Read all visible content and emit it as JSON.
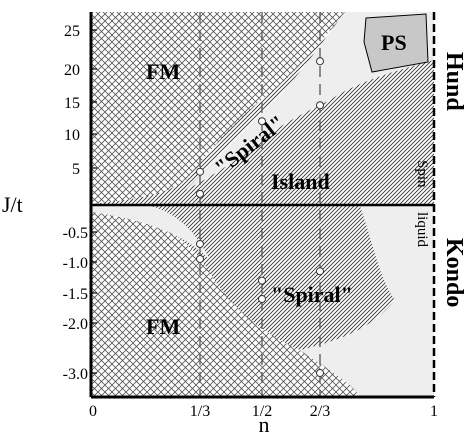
{
  "chart_data": {
    "type": "phase-diagram",
    "xlabel": "n",
    "ylabel": "J/t",
    "x_ticks": [
      "0",
      "1/3",
      "1/2",
      "2/3",
      "1"
    ],
    "y_ticks_upper": [
      "25",
      "20",
      "15",
      "10",
      "5"
    ],
    "y_ticks_lower": [
      "-0.5",
      "-1.0",
      "-1.5",
      "-2.0",
      "-3.0"
    ],
    "side_labels": {
      "top": "Hund",
      "bottom": "Kondo"
    },
    "region_labels": {
      "fm_upper": "FM",
      "fm_lower": "FM",
      "spiral_upper": "\"Spiral\"",
      "spiral_lower": "\"Spiral\"",
      "island": "Island",
      "ps": "PS",
      "spin_liquid_1": "Spin",
      "spin_liquid_2": "liquid"
    },
    "data_points": [
      {
        "n": "1/3",
        "J": 4.5
      },
      {
        "n": "1/3",
        "J": 1.5
      },
      {
        "n": "1/2",
        "J": 12.0
      },
      {
        "n": "2/3",
        "J": 21.0
      },
      {
        "n": "2/3",
        "J": 14.5
      },
      {
        "n": "1/3",
        "J": -0.7
      },
      {
        "n": "1/3",
        "J": -0.95
      },
      {
        "n": "1/2",
        "J": -1.3
      },
      {
        "n": "1/2",
        "J": -1.6
      },
      {
        "n": "2/3",
        "J": -1.15
      },
      {
        "n": "2/3",
        "J": -3.0
      }
    ],
    "colors": {
      "hatch": "#444444",
      "light_region": "#eeeeee",
      "ps_fill": "#c8c8c8"
    }
  }
}
